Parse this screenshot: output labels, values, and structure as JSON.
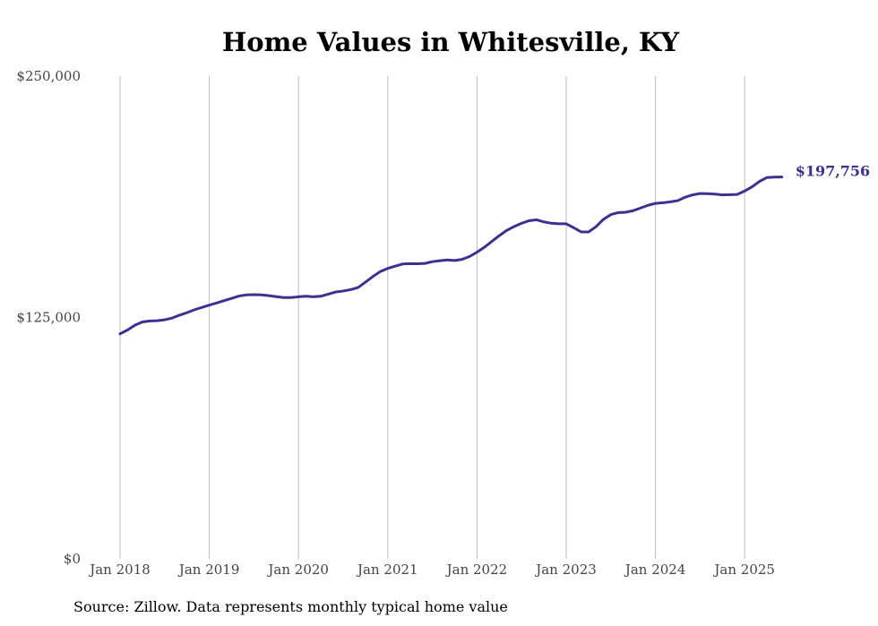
{
  "source_note": "Source: Zillow. Data represents monthly typical home value",
  "colors": {
    "line": "#3b3191",
    "grid": "#bdbdbd",
    "text": "#444444"
  },
  "chart_data": {
    "type": "line",
    "title": "Home Values in Whitesville, KY",
    "xlabel": "",
    "ylabel": "",
    "ylim": [
      0,
      250000
    ],
    "xlim": [
      "2018-01",
      "2025-06"
    ],
    "grid": "vertical",
    "legend": "none",
    "y_ticks": [
      {
        "value": 0,
        "label": "$0"
      },
      {
        "value": 125000,
        "label": "$125,000"
      },
      {
        "value": 250000,
        "label": "$250,000"
      }
    ],
    "x_ticks": [
      {
        "date": "2018-01",
        "label": "Jan 2018"
      },
      {
        "date": "2019-01",
        "label": "Jan 2019"
      },
      {
        "date": "2020-01",
        "label": "Jan 2020"
      },
      {
        "date": "2021-01",
        "label": "Jan 2021"
      },
      {
        "date": "2022-01",
        "label": "Jan 2022"
      },
      {
        "date": "2023-01",
        "label": "Jan 2023"
      },
      {
        "date": "2024-01",
        "label": "Jan 2024"
      },
      {
        "date": "2025-01",
        "label": "Jan 2025"
      }
    ],
    "end_label": "$197,756",
    "series": [
      {
        "x": [
          "2018-01",
          "2018-02",
          "2018-03",
          "2018-04",
          "2018-05",
          "2018-06",
          "2018-07",
          "2018-08",
          "2018-09",
          "2018-10",
          "2018-11",
          "2018-12",
          "2019-01",
          "2019-02",
          "2019-03",
          "2019-04",
          "2019-05",
          "2019-06",
          "2019-07",
          "2019-08",
          "2019-09",
          "2019-10",
          "2019-11",
          "2019-12",
          "2020-01",
          "2020-02",
          "2020-03",
          "2020-04",
          "2020-05",
          "2020-06",
          "2020-07",
          "2020-08",
          "2020-09",
          "2020-10",
          "2020-11",
          "2020-12",
          "2021-01",
          "2021-02",
          "2021-03",
          "2021-04",
          "2021-05",
          "2021-06",
          "2021-07",
          "2021-08",
          "2021-09",
          "2021-10",
          "2021-11",
          "2021-12",
          "2022-01",
          "2022-02",
          "2022-03",
          "2022-04",
          "2022-05",
          "2022-06",
          "2022-07",
          "2022-08",
          "2022-09",
          "2022-10",
          "2022-11",
          "2022-12",
          "2023-01",
          "2023-02",
          "2023-03",
          "2023-04",
          "2023-05",
          "2023-06",
          "2023-07",
          "2023-08",
          "2023-09",
          "2023-10",
          "2023-11",
          "2023-12",
          "2024-01",
          "2024-02",
          "2024-03",
          "2024-04",
          "2024-05",
          "2024-06",
          "2024-07",
          "2024-08",
          "2024-09",
          "2024-10",
          "2024-11",
          "2024-12",
          "2025-01",
          "2025-02",
          "2025-03",
          "2025-04",
          "2025-05",
          "2025-06"
        ],
        "values": [
          116500,
          118500,
          121000,
          122700,
          123200,
          123300,
          123800,
          124700,
          126200,
          127500,
          129000,
          130200,
          131400,
          132500,
          133700,
          134900,
          136100,
          136700,
          136800,
          136700,
          136300,
          135800,
          135300,
          135300,
          135700,
          136000,
          135700,
          136000,
          137100,
          138200,
          138700,
          139400,
          140500,
          143300,
          146200,
          148800,
          150400,
          151600,
          152700,
          152900,
          152800,
          153000,
          153900,
          154400,
          154800,
          154500,
          155100,
          156600,
          158800,
          161400,
          164400,
          167400,
          170100,
          172100,
          173800,
          175100,
          175600,
          174500,
          173800,
          173500,
          173500,
          171500,
          169300,
          169300,
          172000,
          175800,
          178300,
          179300,
          179500,
          180300,
          181700,
          183100,
          184100,
          184400,
          184900,
          185500,
          187300,
          188500,
          189200,
          189100,
          188900,
          188500,
          188600,
          188700,
          190500,
          192700,
          195500,
          197500,
          197700,
          197756
        ]
      }
    ]
  }
}
